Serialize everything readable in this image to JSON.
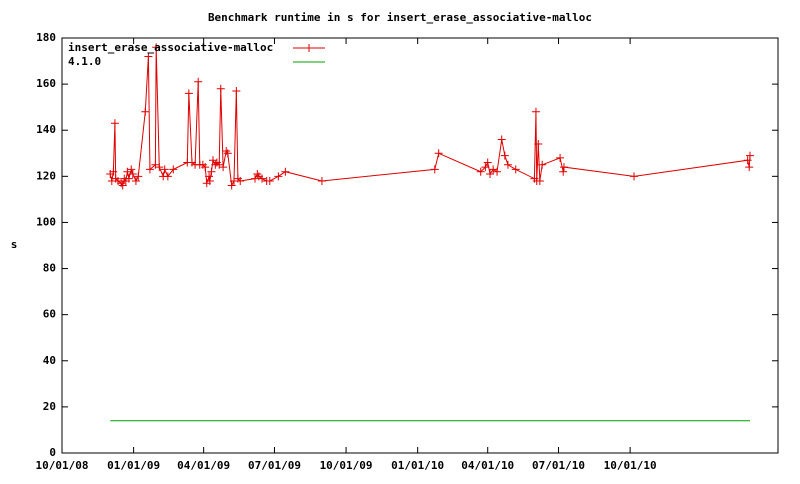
{
  "chart_data": {
    "type": "line",
    "title": "Benchmark runtime in s for insert_erase_associative-malloc",
    "ylabel": "s",
    "xlim": [
      "10/01/08",
      "04/09/11"
    ],
    "xticks": [
      "10/01/08",
      "01/01/09",
      "04/01/09",
      "07/01/09",
      "10/01/09",
      "01/01/10",
      "04/01/10",
      "07/01/10",
      "10/01/10"
    ],
    "ylim": [
      0,
      180
    ],
    "yticks": [
      0,
      20,
      40,
      60,
      80,
      100,
      120,
      140,
      160,
      180
    ],
    "grid": false,
    "legend": "top-left",
    "series": [
      {
        "name": "insert_erase_associative-malloc",
        "color": "#e00000",
        "marker": "+",
        "x": [
          "12/02/08",
          "12/04/08",
          "12/06/08",
          "12/08/08",
          "12/09/08",
          "12/12/08",
          "12/16/08",
          "12/18/08",
          "12/20/08",
          "12/22/08",
          "12/24/08",
          "12/26/08",
          "12/29/08",
          "12/31/08",
          "01/04/09",
          "01/07/09",
          "01/16/09",
          "01/20/09",
          "01/22/09",
          "01/29/09",
          "01/30/09",
          "02/03/09",
          "02/08/09",
          "02/10/09",
          "02/14/09",
          "02/21/09",
          "03/11/09",
          "03/13/09",
          "03/17/09",
          "03/21/09",
          "03/25/09",
          "03/27/09",
          "03/31/09",
          "04/03/09",
          "04/05/09",
          "04/08/09",
          "04/09/09",
          "04/11/09",
          "04/13/09",
          "04/16/09",
          "04/18/09",
          "04/21/09",
          "04/23/09",
          "04/26/09",
          "04/30/09",
          "05/02/09",
          "05/07/09",
          "05/10/09",
          "05/13/09",
          "05/15/09",
          "05/18/09",
          "06/06/09",
          "06/09/09",
          "06/11/09",
          "06/15/09",
          "06/21/09",
          "06/25/09",
          "07/06/09",
          "07/15/09",
          "08/31/09",
          "01/23/10",
          "01/28/10",
          "03/23/10",
          "03/29/10",
          "04/01/10",
          "04/04/10",
          "04/08/10",
          "04/13/10",
          "04/19/10",
          "04/23/10",
          "04/27/10",
          "05/07/10",
          "05/31/10",
          "06/02/10",
          "06/03/10",
          "06/05/10",
          "06/07/10",
          "06/10/10",
          "07/03/10",
          "07/07/10",
          "07/08/10",
          "10/06/10",
          "03/01/11",
          "03/03/11",
          "03/04/11"
        ],
        "values": [
          121,
          118,
          122,
          143,
          119,
          118,
          117,
          116,
          119,
          118,
          122,
          119,
          123,
          121,
          118,
          120,
          148,
          172,
          123,
          125,
          176,
          124,
          120,
          123,
          120,
          123,
          126,
          156,
          126,
          125,
          161,
          125,
          125,
          124,
          117,
          120,
          118,
          122,
          127,
          125,
          126,
          125,
          158,
          124,
          131,
          130,
          116,
          118,
          157,
          119,
          118,
          119,
          121,
          120,
          119,
          118,
          118,
          120,
          122,
          118,
          123,
          130,
          122,
          124,
          126,
          121,
          123,
          122,
          136,
          129,
          125,
          123,
          119,
          148,
          118,
          134,
          118,
          125,
          128,
          122,
          124,
          120,
          127,
          124,
          129
        ]
      },
      {
        "name": "4.1.0",
        "color": "#00a000",
        "x": [
          "12/02/08",
          "03/04/11"
        ],
        "values": [
          14,
          14
        ]
      }
    ]
  }
}
